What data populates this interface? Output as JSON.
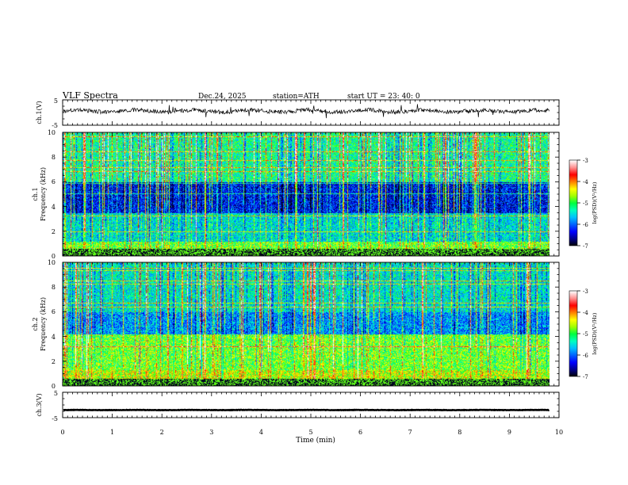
{
  "header": {
    "title": "VLF  Spectra",
    "date": "Dec.24, 2025",
    "station": "station=ATH",
    "start": "start  UT  =   23: 40: 0"
  },
  "chart_data": [
    {
      "type": "line",
      "name": "ch1-waveform",
      "ylabel": "ch.1(V)",
      "ylim": [
        -5,
        5
      ],
      "yticks": [
        "5",
        "-5"
      ],
      "xlim": [
        0,
        10
      ],
      "trace_level_v": 0.6,
      "data_end_min": 9.8
    },
    {
      "type": "heatmap",
      "name": "ch1-spectrogram",
      "ylabel_channel": "ch.1",
      "ylabel": "Frequency  (kHz)",
      "ylim": [
        0,
        10
      ],
      "yticks": [
        "0",
        "2",
        "4",
        "6",
        "8",
        "10"
      ],
      "xlim": [
        0,
        10
      ],
      "data_end_min": 9.8,
      "colorbar": {
        "label": "log(PSD)(V²/Hz)",
        "range": [
          -7,
          -3
        ],
        "ticks": [
          "-3",
          "-4",
          "-5",
          "-6",
          "-7"
        ]
      },
      "seed": 7
    },
    {
      "type": "heatmap",
      "name": "ch2-spectrogram",
      "ylabel_channel": "ch.2",
      "ylabel": "Frequency  (kHz)",
      "ylim": [
        0,
        10
      ],
      "yticks": [
        "0",
        "2",
        "4",
        "6",
        "8",
        "10"
      ],
      "xlim": [
        0,
        10
      ],
      "data_end_min": 9.8,
      "colorbar": {
        "label": "log(PSD)(V²/Hz)",
        "range": [
          -7,
          -3
        ],
        "ticks": [
          "-3",
          "-4",
          "-5",
          "-6",
          "-7"
        ]
      },
      "seed": 19
    },
    {
      "type": "line",
      "name": "ch3-waveform",
      "ylabel": "ch.3(V)",
      "ylim": [
        -5,
        5
      ],
      "yticks": [
        "5",
        "-5"
      ],
      "xlim": [
        0,
        10
      ],
      "trace_level_v": -2.0,
      "data_end_min": 9.8,
      "xlabel": "Time  (min)",
      "xticks": [
        "0",
        "1",
        "2",
        "3",
        "4",
        "5",
        "6",
        "7",
        "8",
        "9",
        "10"
      ]
    }
  ],
  "colors": {
    "colormap": [
      "#000000",
      "#00008a",
      "#0000ff",
      "#0060ff",
      "#00c0ff",
      "#00ffc0",
      "#00ff40",
      "#a0ff00",
      "#ffff00",
      "#ff8000",
      "#ff0000",
      "#ff9090",
      "#ffffff"
    ]
  }
}
